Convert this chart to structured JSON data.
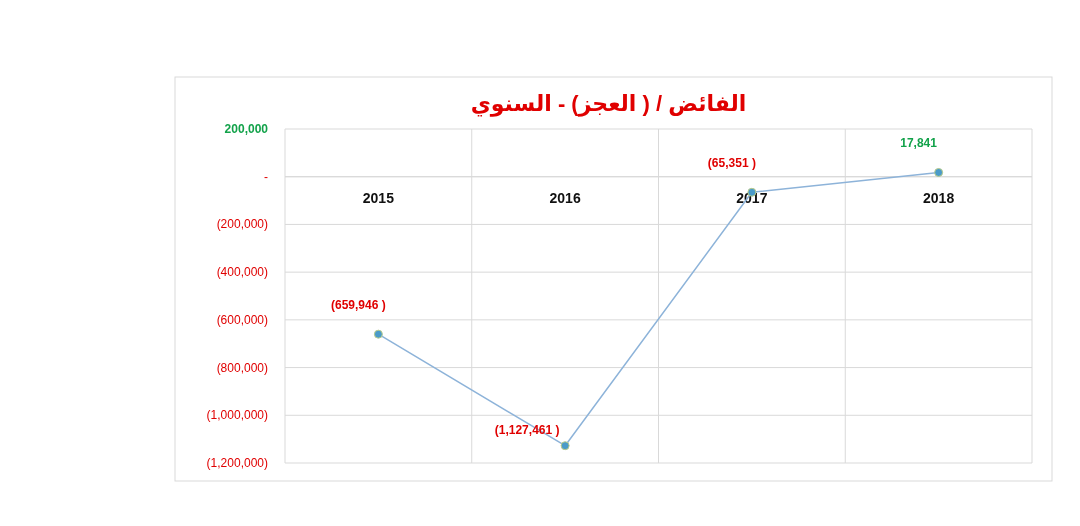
{
  "chart_data": {
    "type": "line",
    "title": "الفائض / ( العجز) - السنوي",
    "categories": [
      "2015",
      "2016",
      "2017",
      "2018"
    ],
    "series": [
      {
        "color": "#8db3d9",
        "values": [
          -659946,
          -1127461,
          -65351,
          17841
        ],
        "value_labels": [
          "(659,946 )",
          "(1,127,461 )",
          "(65,351 )",
          "17,841"
        ]
      }
    ],
    "ylim": [
      -1200000,
      200000
    ],
    "yticks": [
      {
        "value": -1200000,
        "label": "(1,200,000)"
      },
      {
        "value": -1000000,
        "label": "(1,000,000)"
      },
      {
        "value": -800000,
        "label": "(800,000)"
      },
      {
        "value": -600000,
        "label": "(600,000)"
      },
      {
        "value": -400000,
        "label": "(400,000)"
      },
      {
        "value": -200000,
        "label": "(200,000)"
      },
      {
        "value": 0,
        "label": "-"
      },
      {
        "value": 200000,
        "label": "200,000"
      }
    ],
    "grid": true,
    "marker": "circle",
    "line_style": "solid"
  }
}
